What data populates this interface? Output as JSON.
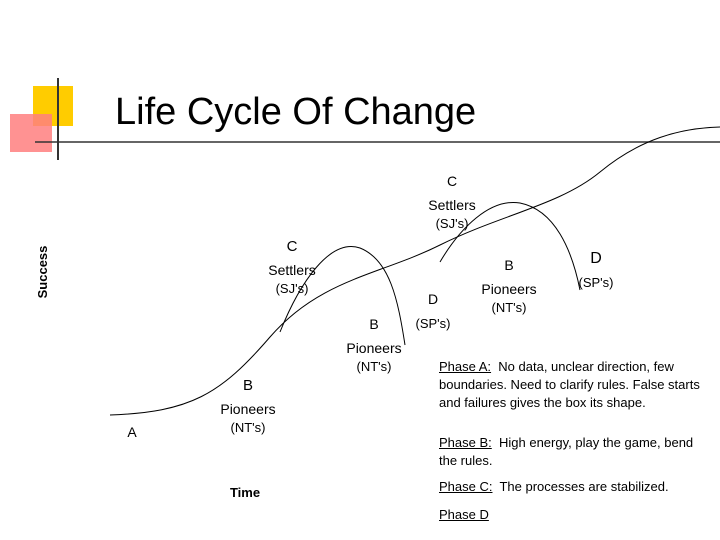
{
  "title": "Life Cycle Of Change",
  "axes": {
    "y_label": "Success",
    "x_label": "Time"
  },
  "labels": [
    {
      "lines": [
        "A"
      ]
    },
    {
      "lines": [
        "B",
        "Pioneers",
        "(NT's)"
      ]
    },
    {
      "lines": [
        "C",
        "Settlers",
        "(SJ's)"
      ]
    },
    {
      "lines": [
        "B",
        "Pioneers",
        "(NT's)"
      ]
    },
    {
      "lines": [
        "D",
        "(SP's)"
      ]
    },
    {
      "lines": [
        "C",
        "Settlers",
        "(SJ's)"
      ]
    },
    {
      "lines": [
        "B",
        "Pioneers",
        "(NT's)"
      ]
    },
    {
      "lines": [
        "D",
        "(SP's)"
      ]
    }
  ],
  "phases": [
    {
      "label": "Phase A:",
      "text": "No data, unclear direction, few boundaries. Need to clarify rules. False starts and failures gives the box its shape."
    },
    {
      "label": "Phase B:",
      "text": "High energy, play the game, bend the rules."
    },
    {
      "label": "Phase C:",
      "text": "The processes are stabilized."
    },
    {
      "label": "Phase D",
      "text": ""
    }
  ]
}
